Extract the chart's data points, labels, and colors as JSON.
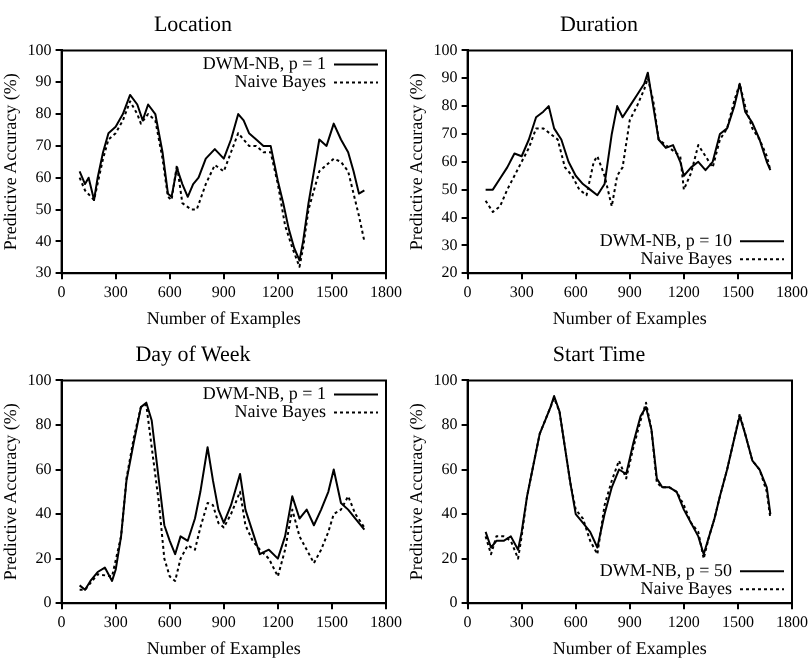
{
  "chart_data": [
    {
      "type": "line",
      "title": "Location",
      "xlabel": "Number of Examples",
      "ylabel": "Predictive Accuracy (%)",
      "xlim": [
        0,
        1800
      ],
      "xticks": [
        0,
        300,
        600,
        900,
        1200,
        1500,
        1800
      ],
      "ylim": [
        30,
        100
      ],
      "yticks": [
        30,
        40,
        50,
        60,
        70,
        80,
        90,
        100
      ],
      "grid": false,
      "legend": "top right",
      "marker": "none",
      "series": [
        {
          "name": "DWM-NB, p = 1",
          "color": "#000000",
          "line_style": "solid",
          "x": [
            100,
            130,
            150,
            180,
            200,
            230,
            260,
            300,
            340,
            380,
            420,
            450,
            480,
            520,
            560,
            590,
            610,
            640,
            670,
            700,
            730,
            760,
            800,
            850,
            900,
            940,
            980,
            1010,
            1040,
            1080,
            1120,
            1160,
            1200,
            1230,
            1260,
            1290,
            1320,
            1340,
            1370,
            1400,
            1430,
            1470,
            1510,
            1550,
            1590,
            1620,
            1650,
            1680
          ],
          "values": [
            62,
            58,
            60,
            53,
            60,
            68,
            74,
            76,
            80,
            86,
            83,
            78,
            83,
            80,
            68,
            55,
            54,
            63,
            58,
            54,
            58,
            60,
            66,
            69,
            66,
            72,
            80,
            78,
            74,
            72,
            70,
            70,
            59,
            52,
            44,
            38,
            34,
            40,
            52,
            62,
            72,
            70,
            77,
            72,
            68,
            62,
            55,
            56
          ]
        },
        {
          "name": "Naive Bayes",
          "color": "#000000",
          "line_style": "dotted",
          "x": [
            100,
            130,
            180,
            230,
            260,
            300,
            340,
            380,
            420,
            440,
            480,
            520,
            560,
            590,
            610,
            640,
            670,
            720,
            750,
            800,
            850,
            900,
            940,
            980,
            1010,
            1040,
            1080,
            1120,
            1160,
            1200,
            1240,
            1280,
            1320,
            1340,
            1370,
            1400,
            1430,
            1470,
            1510,
            1550,
            1590,
            1620,
            1650,
            1680
          ],
          "values": [
            60,
            56,
            53,
            66,
            72,
            74,
            78,
            84,
            80,
            77,
            80,
            78,
            66,
            54,
            53,
            64,
            52,
            50,
            50,
            58,
            64,
            62,
            68,
            74,
            72,
            70,
            70,
            68,
            68,
            58,
            45,
            38,
            32,
            38,
            50,
            56,
            62,
            64,
            66,
            65,
            62,
            55,
            48,
            40
          ]
        }
      ]
    },
    {
      "type": "line",
      "title": "Duration",
      "xlabel": "Number of Examples",
      "ylabel": "Predictive Accuracy (%)",
      "xlim": [
        0,
        1800
      ],
      "xticks": [
        0,
        300,
        600,
        900,
        1200,
        1500,
        1800
      ],
      "ylim": [
        20,
        100
      ],
      "yticks": [
        20,
        30,
        40,
        50,
        60,
        70,
        80,
        90,
        100
      ],
      "grid": false,
      "legend": "bottom right",
      "marker": "none",
      "series": [
        {
          "name": "DWM-NB, p = 10",
          "color": "#000000",
          "line_style": "solid",
          "x": [
            100,
            140,
            180,
            220,
            260,
            300,
            340,
            380,
            420,
            450,
            480,
            520,
            560,
            600,
            640,
            680,
            720,
            760,
            800,
            830,
            860,
            900,
            940,
            980,
            1000,
            1030,
            1060,
            1100,
            1140,
            1180,
            1200,
            1240,
            1280,
            1320,
            1360,
            1400,
            1440,
            1480,
            1510,
            1540,
            1580,
            1620,
            1660,
            1680
          ],
          "values": [
            50,
            50,
            54,
            58,
            63,
            62,
            68,
            76,
            78,
            80,
            72,
            68,
            60,
            55,
            52,
            50,
            48,
            52,
            70,
            80,
            76,
            80,
            84,
            88,
            92,
            80,
            68,
            65,
            66,
            60,
            55,
            58,
            60,
            57,
            60,
            70,
            72,
            80,
            88,
            78,
            74,
            68,
            60,
            57
          ]
        },
        {
          "name": "Naive Bayes",
          "color": "#000000",
          "line_style": "dotted",
          "x": [
            100,
            140,
            180,
            220,
            260,
            300,
            340,
            380,
            420,
            460,
            500,
            540,
            580,
            620,
            660,
            700,
            720,
            760,
            800,
            830,
            860,
            900,
            940,
            980,
            1000,
            1030,
            1060,
            1100,
            1140,
            1180,
            1200,
            1240,
            1280,
            1320,
            1360,
            1400,
            1440,
            1480,
            1510,
            1540,
            1580,
            1620,
            1660,
            1680
          ],
          "values": [
            46,
            42,
            44,
            50,
            55,
            60,
            65,
            72,
            72,
            70,
            68,
            58,
            55,
            50,
            48,
            60,
            62,
            55,
            44,
            55,
            58,
            75,
            80,
            86,
            90,
            82,
            68,
            66,
            64,
            62,
            50,
            56,
            66,
            62,
            58,
            68,
            72,
            82,
            88,
            80,
            72,
            68,
            62,
            57
          ]
        }
      ]
    },
    {
      "type": "line",
      "title": "Day of Week",
      "xlabel": "Number of Examples",
      "ylabel": "Predictive Accuracy (%)",
      "xlim": [
        0,
        1800
      ],
      "xticks": [
        0,
        300,
        600,
        900,
        1200,
        1500,
        1800
      ],
      "ylim": [
        0,
        100
      ],
      "yticks": [
        0,
        20,
        40,
        60,
        80,
        100
      ],
      "grid": false,
      "legend": "top right",
      "marker": "none",
      "series": [
        {
          "name": "DWM-NB, p = 1",
          "color": "#000000",
          "line_style": "solid",
          "x": [
            100,
            130,
            160,
            200,
            240,
            280,
            300,
            330,
            360,
            400,
            440,
            470,
            500,
            540,
            570,
            600,
            630,
            660,
            700,
            740,
            770,
            810,
            840,
            870,
            900,
            940,
            990,
            1020,
            1060,
            1100,
            1150,
            1200,
            1240,
            1280,
            1320,
            1360,
            1400,
            1440,
            1480,
            1510,
            1550,
            1590,
            1630,
            1680
          ],
          "values": [
            8,
            6,
            10,
            14,
            16,
            10,
            15,
            30,
            55,
            72,
            88,
            90,
            82,
            55,
            35,
            28,
            22,
            30,
            28,
            38,
            50,
            70,
            55,
            42,
            36,
            44,
            58,
            42,
            32,
            22,
            24,
            20,
            30,
            48,
            38,
            42,
            35,
            42,
            50,
            60,
            45,
            42,
            38,
            33
          ]
        },
        {
          "name": "Naive Bayes",
          "color": "#000000",
          "line_style": "dotted",
          "x": [
            100,
            130,
            200,
            280,
            330,
            360,
            400,
            440,
            470,
            500,
            540,
            570,
            600,
            630,
            660,
            700,
            740,
            770,
            810,
            840,
            870,
            900,
            940,
            990,
            1020,
            1060,
            1100,
            1150,
            1200,
            1240,
            1280,
            1320,
            1360,
            1400,
            1440,
            1480,
            1510,
            1550,
            1590,
            1630,
            1680
          ],
          "values": [
            6,
            6,
            13,
            12,
            30,
            56,
            74,
            88,
            89,
            70,
            45,
            20,
            12,
            10,
            20,
            26,
            24,
            34,
            45,
            44,
            36,
            34,
            40,
            50,
            35,
            28,
            24,
            20,
            12,
            24,
            42,
            30,
            24,
            18,
            24,
            32,
            40,
            42,
            48,
            40,
            34
          ]
        }
      ]
    },
    {
      "type": "line",
      "title": "Start Time",
      "xlabel": "Number of Examples",
      "ylabel": "Predictive Accuracy (%)",
      "xlim": [
        0,
        1800
      ],
      "xticks": [
        0,
        300,
        600,
        900,
        1200,
        1500,
        1800
      ],
      "ylim": [
        0,
        100
      ],
      "yticks": [
        0,
        20,
        40,
        60,
        80,
        100
      ],
      "grid": false,
      "legend": "bottom right",
      "marker": "none",
      "series": [
        {
          "name": "DWM-NB, p = 50",
          "color": "#000000",
          "line_style": "solid",
          "x": [
            100,
            130,
            160,
            200,
            240,
            280,
            300,
            330,
            360,
            400,
            430,
            460,
            480,
            510,
            540,
            570,
            600,
            640,
            680,
            720,
            760,
            800,
            840,
            880,
            920,
            960,
            990,
            1020,
            1050,
            1080,
            1120,
            1160,
            1200,
            1240,
            1280,
            1310,
            1340,
            1370,
            1400,
            1440,
            1480,
            1510,
            1540,
            1580,
            1620,
            1660,
            1680
          ],
          "values": [
            32,
            25,
            28,
            28,
            30,
            24,
            32,
            48,
            60,
            76,
            82,
            88,
            93,
            86,
            70,
            54,
            40,
            36,
            32,
            25,
            40,
            52,
            60,
            58,
            72,
            84,
            88,
            78,
            56,
            52,
            52,
            50,
            42,
            36,
            30,
            22,
            30,
            38,
            48,
            60,
            74,
            84,
            76,
            64,
            60,
            52,
            40
          ]
        },
        {
          "name": "Naive Bayes",
          "color": "#000000",
          "line_style": "dotted",
          "x": [
            100,
            130,
            160,
            200,
            240,
            280,
            300,
            330,
            360,
            400,
            430,
            460,
            480,
            510,
            540,
            570,
            600,
            640,
            680,
            720,
            760,
            800,
            840,
            880,
            920,
            960,
            990,
            1020,
            1050,
            1080,
            1120,
            1160,
            1200,
            1240,
            1280,
            1310,
            1340,
            1370,
            1400,
            1440,
            1480,
            1510,
            1540,
            1580,
            1620,
            1660,
            1680
          ],
          "values": [
            30,
            22,
            30,
            30,
            28,
            20,
            30,
            48,
            60,
            76,
            82,
            88,
            92,
            86,
            70,
            54,
            42,
            38,
            28,
            22,
            44,
            55,
            64,
            56,
            70,
            82,
            90,
            78,
            54,
            52,
            52,
            50,
            44,
            36,
            32,
            20,
            30,
            38,
            48,
            60,
            74,
            85,
            76,
            64,
            60,
            50,
            38
          ]
        }
      ]
    }
  ]
}
